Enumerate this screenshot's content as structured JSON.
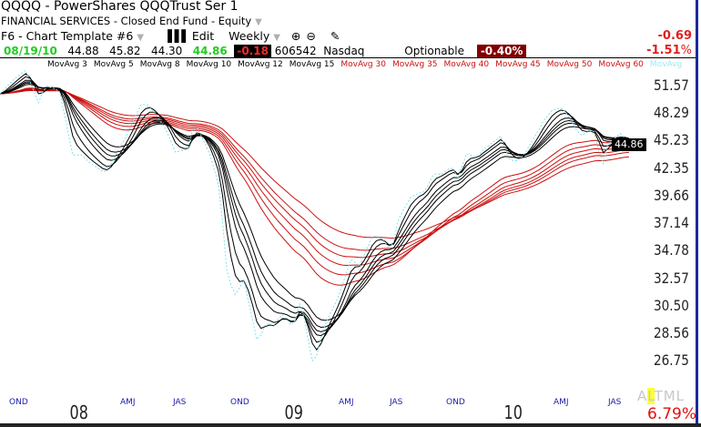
{
  "header": {
    "title": "QQQQ - PowerShares QQQTrust Ser 1",
    "sector": "FINANCIAL SERVICES - Closed End Fund - Equity",
    "template": "F6 - Chart Template #6",
    "edit_label": "Edit",
    "period": "Weekly",
    "icons": [
      "bar-chart-icon",
      "zoom-in-icon",
      "zoom-out-icon",
      "pencil-icon"
    ]
  },
  "quote": {
    "date": "08/19/10",
    "open": "44.88",
    "high": "45.82",
    "low": "44.30",
    "close": "44.86",
    "change": "-0.18",
    "volume": "606542",
    "exchange": "Nasdaq",
    "optionable": "Optionable",
    "change_pct": "-0.40%",
    "period_change": "-0.69",
    "period_change_pct": "-1.51",
    "pct_sign": "%"
  },
  "legend": {
    "short": [
      "MovAvg 3",
      "MovAvg 5",
      "MovAvg 8",
      "MovAvg 10",
      "MovAvg 12",
      "MovAvg 15"
    ],
    "long": [
      "MovAvg 30",
      "MovAvg 35",
      "MovAvg 40",
      "MovAvg 45",
      "MovAvg 50",
      "MovAvg 60"
    ],
    "extra": "MovAvg"
  },
  "colors": {
    "short_ma": "#000000",
    "long_ma": "#cc1010",
    "close": "#7fe0ec",
    "month_labels": "#1a1aa8"
  },
  "footer": {
    "altml_a": "A",
    "altml_l": "L",
    "altml_rest": "TML",
    "total_pct": "6.79%"
  },
  "chart_data": {
    "type": "line",
    "scale": "log",
    "ylim": [
      25.5,
      55
    ],
    "y_ticks": [
      "51.57",
      "48.29",
      "45.23",
      "42.35",
      "39.66",
      "37.14",
      "34.78",
      "32.57",
      "30.50",
      "28.56",
      "26.75"
    ],
    "last_price_label": "44.86",
    "x_month_labels": [
      "OND",
      "AMJ",
      "JAS",
      "OND",
      "AMJ",
      "JAS",
      "OND",
      "AMJ",
      "JAS"
    ],
    "x_year_labels": [
      "08",
      "09",
      "10"
    ],
    "frequency": "weekly",
    "ma_periods_short": [
      3,
      5,
      8,
      10,
      12,
      15
    ],
    "ma_periods_long": [
      30,
      35,
      40,
      45,
      50,
      60
    ],
    "close": [
      50.7,
      51.2,
      51.8,
      52.3,
      52.8,
      53.2,
      53.6,
      52.2,
      50.9,
      49.6,
      50.9,
      51.6,
      51.4,
      51.3,
      50.8,
      48.4,
      46.0,
      43.8,
      43.8,
      43.8,
      43.4,
      43.0,
      42.7,
      42.4,
      42.1,
      42.1,
      42.9,
      43.8,
      44.6,
      45.4,
      46.3,
      47.3,
      48.4,
      49.4,
      49.4,
      49.2,
      48.5,
      47.8,
      47.1,
      46.3,
      45.2,
      44.1,
      44.2,
      44.3,
      44.5,
      46.6,
      46.8,
      45.9,
      44.9,
      43.9,
      42.4,
      40.9,
      37.4,
      33.3,
      32.1,
      31.4,
      31.9,
      32.5,
      31.0,
      29.6,
      28.2,
      28.5,
      29.2,
      29.3,
      29.1,
      29.6,
      29.9,
      29.6,
      29.2,
      29.5,
      30.7,
      29.8,
      28.2,
      26.8,
      27.1,
      28.3,
      29.2,
      29.9,
      30.5,
      31.2,
      32.1,
      33.1,
      34.1,
      33.9,
      33.6,
      34.4,
      35.2,
      36.0,
      36.1,
      35.9,
      35.5,
      35.0,
      35.6,
      37.4,
      38.2,
      38.9,
      39.6,
      39.8,
      40.0,
      40.1,
      40.7,
      41.6,
      41.9,
      41.8,
      42.1,
      42.4,
      42.4,
      41.4,
      42.6,
      43.9,
      43.8,
      43.6,
      43.8,
      44.4,
      44.7,
      45.1,
      45.4,
      45.8,
      44.6,
      43.4,
      43.2,
      43.2,
      43.6,
      44.2,
      45.0,
      45.8,
      46.6,
      47.5,
      48.1,
      48.7,
      48.9,
      49.0,
      48.6,
      47.9,
      47.1,
      46.3,
      45.9,
      46.2,
      46.4,
      46.0,
      44.2,
      42.9,
      44.8,
      45.3,
      45.7,
      46.1,
      45.6,
      44.86
    ]
  }
}
